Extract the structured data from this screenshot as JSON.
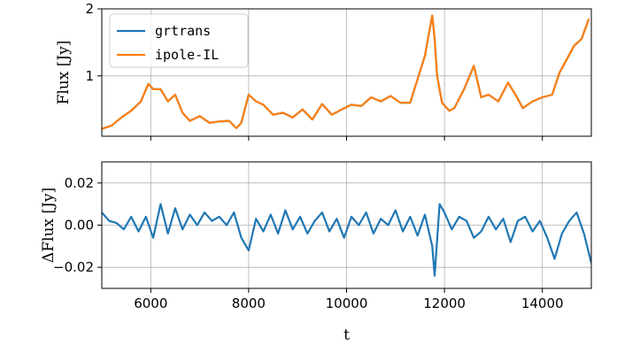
{
  "chart_data": [
    {
      "type": "line",
      "panel": "top",
      "ylabel": "Flux [Jy]",
      "xlim": [
        5000,
        15000
      ],
      "ylim": [
        0.1,
        2.0
      ],
      "grid": true,
      "legend_placement": "upper-left",
      "yticks": [
        1,
        2
      ],
      "x": [
        5000,
        5200,
        5400,
        5600,
        5800,
        5950,
        6050,
        6200,
        6350,
        6500,
        6650,
        6800,
        7000,
        7200,
        7400,
        7600,
        7750,
        7850,
        8000,
        8150,
        8300,
        8500,
        8700,
        8900,
        9100,
        9300,
        9500,
        9700,
        9900,
        10100,
        10300,
        10500,
        10700,
        10900,
        11100,
        11300,
        11450,
        11600,
        11700,
        11750,
        11800,
        11850,
        11950,
        12100,
        12200,
        12400,
        12600,
        12750,
        12900,
        13100,
        13300,
        13450,
        13600,
        13800,
        14000,
        14200,
        14350,
        14500,
        14650,
        14800,
        14950
      ],
      "series": [
        {
          "name": "grtrans",
          "color": "#1f77b4",
          "values": [
            0.21,
            0.26,
            0.38,
            0.48,
            0.62,
            0.88,
            0.8,
            0.8,
            0.62,
            0.72,
            0.45,
            0.33,
            0.4,
            0.3,
            0.32,
            0.33,
            0.22,
            0.3,
            0.72,
            0.62,
            0.57,
            0.42,
            0.45,
            0.38,
            0.5,
            0.35,
            0.58,
            0.42,
            0.5,
            0.57,
            0.55,
            0.68,
            0.62,
            0.7,
            0.6,
            0.6,
            0.95,
            1.3,
            1.7,
            1.9,
            1.55,
            1.0,
            0.6,
            0.48,
            0.52,
            0.8,
            1.15,
            0.68,
            0.72,
            0.62,
            0.9,
            0.72,
            0.52,
            0.62,
            0.68,
            0.72,
            1.05,
            1.25,
            1.45,
            1.55,
            1.85
          ]
        },
        {
          "name": "ipole-IL",
          "color": "#ff7f0e",
          "values": [
            0.21,
            0.26,
            0.38,
            0.48,
            0.62,
            0.88,
            0.8,
            0.8,
            0.62,
            0.72,
            0.45,
            0.33,
            0.4,
            0.3,
            0.32,
            0.33,
            0.22,
            0.3,
            0.72,
            0.62,
            0.57,
            0.42,
            0.45,
            0.38,
            0.5,
            0.35,
            0.58,
            0.42,
            0.5,
            0.57,
            0.55,
            0.68,
            0.62,
            0.7,
            0.6,
            0.6,
            0.95,
            1.3,
            1.7,
            1.9,
            1.55,
            1.0,
            0.6,
            0.48,
            0.52,
            0.8,
            1.15,
            0.68,
            0.72,
            0.62,
            0.9,
            0.72,
            0.52,
            0.62,
            0.68,
            0.72,
            1.05,
            1.25,
            1.45,
            1.55,
            1.85
          ]
        }
      ]
    },
    {
      "type": "line",
      "panel": "bottom",
      "xlabel": "t",
      "ylabel": "ΔFlux [Jy]",
      "xlim": [
        5000,
        15000
      ],
      "ylim": [
        -0.03,
        0.03
      ],
      "grid": true,
      "xticks": [
        6000,
        8000,
        10000,
        12000,
        14000
      ],
      "yticks": [
        0.02,
        0.0,
        -0.02
      ],
      "ytick_labels": [
        "0.02",
        "0.00",
        "−0.02"
      ],
      "x": [
        5000,
        5150,
        5300,
        5450,
        5600,
        5750,
        5900,
        6050,
        6200,
        6350,
        6500,
        6650,
        6800,
        6950,
        7100,
        7250,
        7400,
        7550,
        7700,
        7850,
        8000,
        8150,
        8300,
        8450,
        8600,
        8750,
        8900,
        9050,
        9200,
        9350,
        9500,
        9650,
        9800,
        9950,
        10100,
        10250,
        10400,
        10550,
        10700,
        10850,
        11000,
        11150,
        11300,
        11450,
        11600,
        11750,
        11800,
        11900,
        12000,
        12150,
        12300,
        12450,
        12600,
        12750,
        12900,
        13050,
        13200,
        13350,
        13500,
        13650,
        13800,
        13950,
        14100,
        14250,
        14400,
        14550,
        14700,
        14850,
        15000
      ],
      "series": [
        {
          "name": "",
          "color": "#1f77b4",
          "values": [
            0.006,
            0.002,
            0.001,
            -0.002,
            0.004,
            -0.003,
            0.004,
            -0.006,
            0.01,
            -0.004,
            0.008,
            -0.002,
            0.005,
            0.0,
            0.006,
            0.002,
            0.004,
            0.0,
            0.006,
            -0.006,
            -0.012,
            0.003,
            -0.003,
            0.005,
            -0.004,
            0.007,
            -0.002,
            0.004,
            -0.004,
            0.002,
            0.006,
            -0.003,
            0.003,
            -0.006,
            0.004,
            0.0,
            0.006,
            -0.004,
            0.003,
            0.0,
            0.007,
            -0.003,
            0.004,
            -0.005,
            0.005,
            -0.01,
            -0.024,
            0.01,
            0.006,
            -0.002,
            0.004,
            0.002,
            -0.006,
            -0.003,
            0.004,
            -0.002,
            0.003,
            -0.008,
            0.002,
            0.004,
            -0.003,
            0.002,
            -0.006,
            -0.016,
            -0.004,
            0.002,
            0.006,
            -0.004,
            -0.018
          ]
        }
      ]
    }
  ]
}
